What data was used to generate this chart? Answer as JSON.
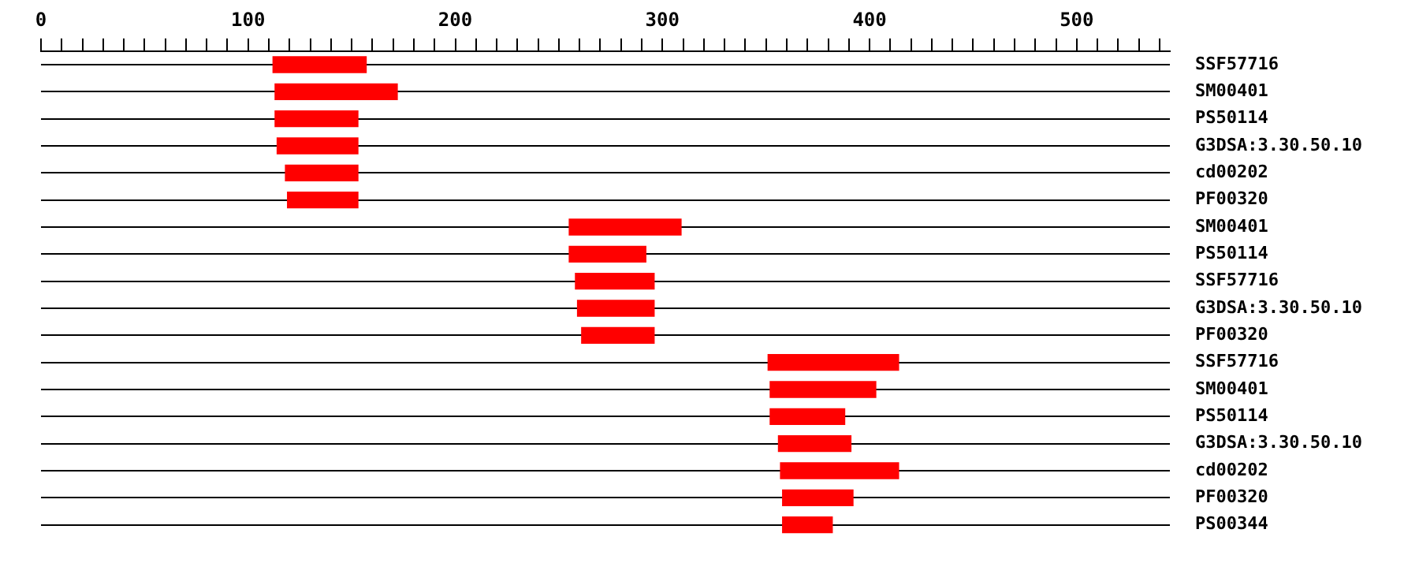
{
  "chart_data": {
    "type": "bar",
    "orientation": "horizontal",
    "categories": [
      "SSF57716",
      "SM00401",
      "PS50114",
      "G3DSA:3.30.50.10",
      "cd00202",
      "PF00320",
      "SM00401",
      "PS50114",
      "SSF57716",
      "G3DSA:3.30.50.10",
      "PF00320",
      "SSF57716",
      "SM00401",
      "PS50114",
      "G3DSA:3.30.50.10",
      "cd00202",
      "PF00320",
      "PS00344"
    ],
    "base": [
      112,
      113,
      113,
      114,
      118,
      119,
      255,
      255,
      258,
      259,
      261,
      351,
      352,
      352,
      356,
      357,
      358,
      358
    ],
    "values": [
      45,
      59,
      40,
      39,
      35,
      34,
      54,
      37,
      38,
      37,
      35,
      63,
      51,
      36,
      35,
      57,
      34,
      24
    ],
    "color": "#ff0000",
    "xlim": [
      0,
      545
    ],
    "xticks": [
      0,
      {
        "value": 10,
        "label": null
      },
      {
        "value": 20,
        "label": null
      },
      {
        "value": 30,
        "label": null
      },
      {
        "value": 40,
        "label": null
      },
      {
        "value": 50,
        "label": null
      },
      {
        "value": 60,
        "label": null
      },
      {
        "value": 70,
        "label": null
      },
      {
        "value": 80,
        "label": null
      },
      {
        "value": 90,
        "label": null
      },
      100,
      {
        "value": 110,
        "label": null
      },
      {
        "value": 120,
        "label": null
      },
      {
        "value": 130,
        "label": null
      },
      {
        "value": 140,
        "label": null
      },
      {
        "value": 150,
        "label": null
      },
      {
        "value": 160,
        "label": null
      },
      {
        "value": 170,
        "label": null
      },
      {
        "value": 180,
        "label": null
      },
      {
        "value": 190,
        "label": null
      },
      200,
      {
        "value": 210,
        "label": null
      },
      {
        "value": 220,
        "label": null
      },
      {
        "value": 230,
        "label": null
      },
      {
        "value": 240,
        "label": null
      },
      {
        "value": 250,
        "label": null
      },
      {
        "value": 260,
        "label": null
      },
      {
        "value": 270,
        "label": null
      },
      {
        "value": 280,
        "label": null
      },
      {
        "value": 290,
        "label": null
      },
      300,
      {
        "value": 310,
        "label": null
      },
      {
        "value": 320,
        "label": null
      },
      {
        "value": 330,
        "label": null
      },
      {
        "value": 340,
        "label": null
      },
      {
        "value": 350,
        "label": null
      },
      {
        "value": 360,
        "label": null
      },
      {
        "value": 370,
        "label": null
      },
      {
        "value": 380,
        "label": null
      },
      {
        "value": 390,
        "label": null
      },
      400,
      {
        "value": 410,
        "label": null
      },
      {
        "value": 420,
        "label": null
      },
      {
        "value": 430,
        "label": null
      },
      {
        "value": 440,
        "label": null
      },
      {
        "value": 450,
        "label": null
      },
      {
        "value": 460,
        "label": null
      },
      {
        "value": 470,
        "label": null
      },
      {
        "value": 480,
        "label": null
      },
      {
        "value": 490,
        "label": null
      },
      500,
      {
        "value": 510,
        "label": null
      },
      {
        "value": 520,
        "label": null
      },
      {
        "value": 530,
        "label": null
      },
      {
        "value": 540,
        "label": null
      }
    ],
    "grid": "y",
    "legend": false
  }
}
